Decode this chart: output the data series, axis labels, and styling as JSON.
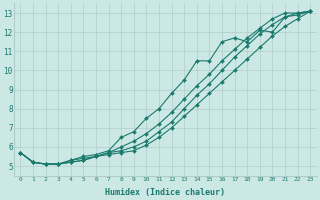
{
  "xlabel": "Humidex (Indice chaleur)",
  "xlim": [
    -0.5,
    23.5
  ],
  "ylim": [
    4.5,
    13.5
  ],
  "xticks": [
    0,
    1,
    2,
    3,
    4,
    5,
    6,
    7,
    8,
    9,
    10,
    11,
    12,
    13,
    14,
    15,
    16,
    17,
    18,
    19,
    20,
    21,
    22,
    23
  ],
  "yticks": [
    5,
    6,
    7,
    8,
    9,
    10,
    11,
    12,
    13
  ],
  "bg_color": "#cce8e4",
  "grid_color": "#b0cccc",
  "line_color": "#1a7a6e",
  "lines": [
    [
      5.7,
      5.2,
      5.1,
      5.1,
      5.2,
      5.3,
      5.5,
      5.6,
      5.7,
      5.8,
      6.1,
      6.5,
      7.0,
      7.6,
      8.2,
      8.8,
      9.4,
      10.0,
      10.6,
      11.2,
      11.8,
      12.3,
      12.7,
      13.1
    ],
    [
      5.7,
      5.2,
      5.1,
      5.1,
      5.2,
      5.3,
      5.5,
      5.7,
      5.8,
      6.0,
      6.3,
      6.8,
      7.3,
      8.0,
      8.7,
      9.3,
      10.0,
      10.7,
      11.3,
      11.9,
      12.4,
      12.8,
      13.0,
      13.1
    ],
    [
      5.7,
      5.2,
      5.1,
      5.1,
      5.3,
      5.5,
      5.6,
      5.8,
      6.5,
      6.8,
      7.5,
      8.0,
      8.8,
      9.5,
      10.5,
      10.5,
      11.5,
      11.7,
      11.5,
      12.1,
      12.0,
      12.8,
      12.9,
      13.1
    ],
    [
      5.7,
      5.2,
      5.1,
      5.1,
      5.3,
      5.4,
      5.5,
      5.7,
      6.0,
      6.3,
      6.7,
      7.2,
      7.8,
      8.5,
      9.2,
      9.8,
      10.5,
      11.1,
      11.7,
      12.2,
      12.7,
      13.0,
      13.0,
      13.1
    ]
  ]
}
